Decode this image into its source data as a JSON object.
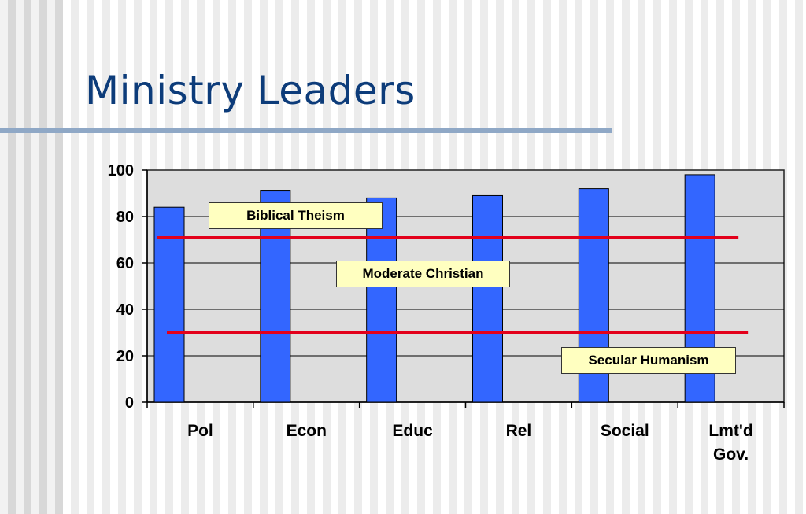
{
  "slide": {
    "title": "Ministry Leaders"
  },
  "chart_data": {
    "type": "bar",
    "categories": [
      "Pol",
      "Econ",
      "Educ",
      "Rel",
      "Social",
      "Lmt'd Gov."
    ],
    "values": [
      84,
      91,
      88,
      89,
      92,
      98
    ],
    "ylim": [
      0,
      100
    ],
    "yticks": [
      0,
      20,
      40,
      60,
      80,
      100
    ],
    "grid": true,
    "colors": {
      "bar": "#3366ff",
      "plot_bg": "#dddddd",
      "reference_line": "#e3001b",
      "label_bg": "#ffffc0"
    },
    "reference_lines": [
      {
        "y": 71,
        "x_start": "Pol",
        "x_end": "Lmt'd Gov."
      },
      {
        "y": 30,
        "x_start": "Pol",
        "x_end": "Lmt'd Gov."
      }
    ],
    "annotations": [
      {
        "text": "Biblical Theism",
        "y": 80
      },
      {
        "text": "Moderate Christian",
        "y": 55
      },
      {
        "text": "Secular Humanism",
        "y": 18
      }
    ]
  }
}
